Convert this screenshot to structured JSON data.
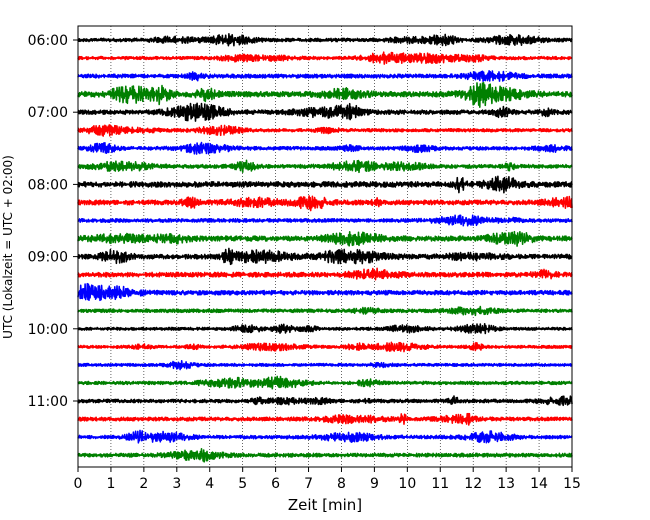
{
  "chart_data": {
    "type": "line",
    "title": "",
    "xlabel": "Zeit  [min]",
    "ylabel": "UTC (Lokalzeit = UTC + 02:00)",
    "xlim": [
      0,
      15
    ],
    "x_ticks": [
      "0",
      "1",
      "2",
      "3",
      "4",
      "5",
      "6",
      "7",
      "8",
      "9",
      "10",
      "11",
      "12",
      "13",
      "14",
      "15"
    ],
    "y_ticks": [
      {
        "label": "06:00",
        "trace": 0
      },
      {
        "label": "07:00",
        "trace": 4
      },
      {
        "label": "08:00",
        "trace": 8
      },
      {
        "label": "09:00",
        "trace": 12
      },
      {
        "label": "10:00",
        "trace": 16
      },
      {
        "label": "11:00",
        "trace": 20
      }
    ],
    "grid": "vertical-dotted",
    "trace_colors": [
      "#000000",
      "#ff0000",
      "#0000ff",
      "#008000"
    ],
    "traces": [
      {
        "start": "06:00",
        "color": "#000000",
        "amp": 2.2
      },
      {
        "start": "06:15",
        "color": "#ff0000",
        "amp": 2.0
      },
      {
        "start": "06:30",
        "color": "#0000ff",
        "amp": 2.5
      },
      {
        "start": "06:45",
        "color": "#008000",
        "amp": 3.5
      },
      {
        "start": "07:00",
        "color": "#000000",
        "amp": 2.8
      },
      {
        "start": "07:15",
        "color": "#ff0000",
        "amp": 2.0
      },
      {
        "start": "07:30",
        "color": "#0000ff",
        "amp": 2.2
      },
      {
        "start": "07:45",
        "color": "#008000",
        "amp": 2.4
      },
      {
        "start": "08:00",
        "color": "#000000",
        "amp": 3.5
      },
      {
        "start": "08:15",
        "color": "#ff0000",
        "amp": 3.0
      },
      {
        "start": "08:30",
        "color": "#0000ff",
        "amp": 2.3
      },
      {
        "start": "08:45",
        "color": "#008000",
        "amp": 3.2
      },
      {
        "start": "09:00",
        "color": "#000000",
        "amp": 3.0
      },
      {
        "start": "09:15",
        "color": "#ff0000",
        "amp": 3.0
      },
      {
        "start": "09:30",
        "color": "#0000ff",
        "amp": 2.8
      },
      {
        "start": "09:45",
        "color": "#008000",
        "amp": 2.2
      },
      {
        "start": "10:00",
        "color": "#000000",
        "amp": 1.8
      },
      {
        "start": "10:15",
        "color": "#ff0000",
        "amp": 1.8
      },
      {
        "start": "10:30",
        "color": "#0000ff",
        "amp": 1.8
      },
      {
        "start": "10:45",
        "color": "#008000",
        "amp": 2.0
      },
      {
        "start": "11:00",
        "color": "#000000",
        "amp": 2.2
      },
      {
        "start": "11:15",
        "color": "#ff0000",
        "amp": 2.4
      },
      {
        "start": "11:30",
        "color": "#0000ff",
        "amp": 2.2
      },
      {
        "start": "11:45",
        "color": "#008000",
        "amp": 2.4
      }
    ]
  }
}
